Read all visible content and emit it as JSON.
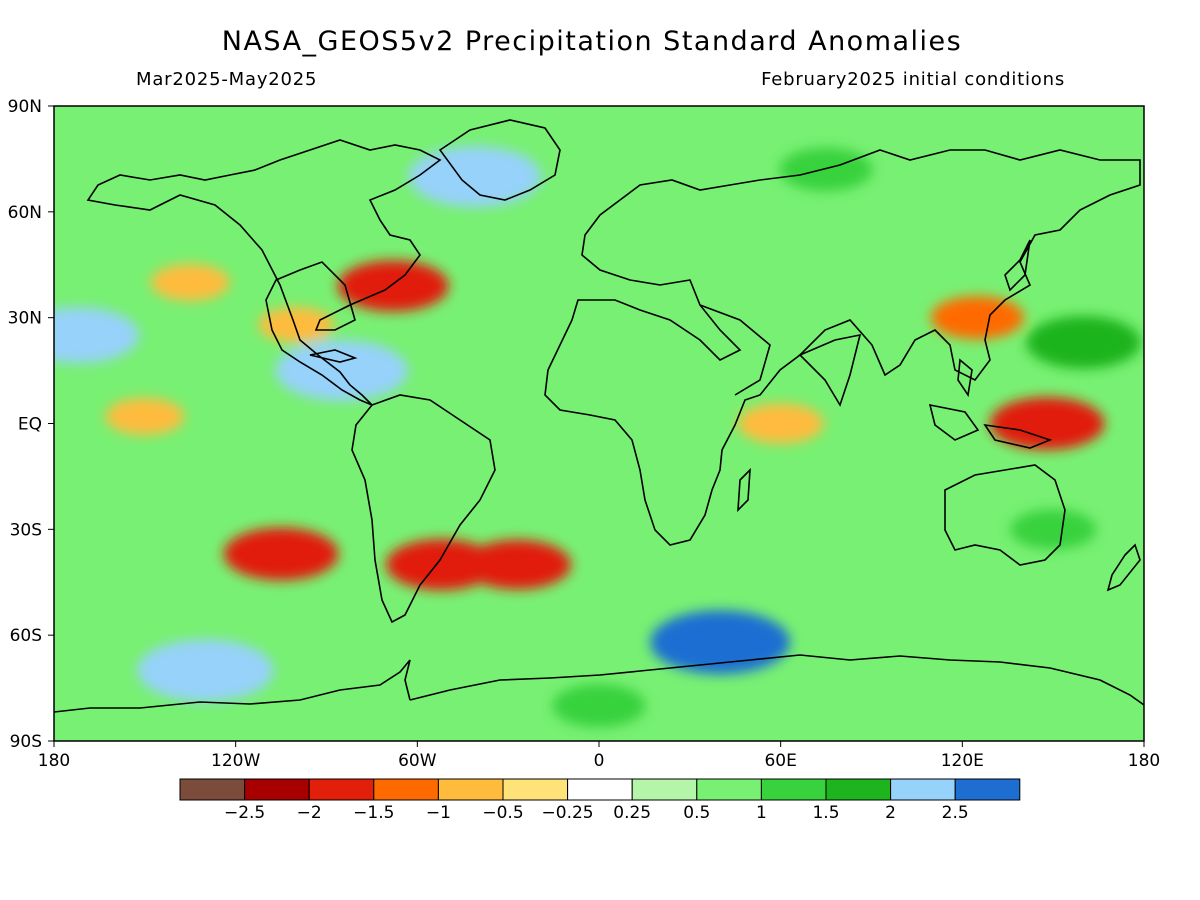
{
  "header": {
    "title": "NASA_GEOS5v2 Precipitation Standard Anomalies",
    "period": "Mar2025-May2025",
    "init": "February2025 initial conditions"
  },
  "axes": {
    "lat_labels": [
      "90N",
      "60N",
      "30N",
      "EQ",
      "30S",
      "60S",
      "90S"
    ],
    "lat_values": [
      90,
      60,
      30,
      0,
      -30,
      -60,
      -90
    ],
    "lon_labels": [
      "180",
      "120W",
      "60W",
      "0",
      "60E",
      "120E",
      "180"
    ],
    "lon_values": [
      -180,
      -120,
      -60,
      0,
      60,
      120,
      180
    ]
  },
  "legend": {
    "labels": [
      "-2.5",
      "-2",
      "-1.5",
      "-1",
      "-0.5",
      "-0.25",
      "0.25",
      "0.5",
      "1",
      "1.5",
      "2",
      "2.5"
    ],
    "colors": [
      "#7b4b3c",
      "#a80000",
      "#e11f0a",
      "#ff6a00",
      "#ffbb3c",
      "#ffe278",
      "#ffffff",
      "#b4f5aa",
      "#78f073",
      "#37d23c",
      "#1eb41e",
      "#96d2fa",
      "#1e6ed2"
    ]
  },
  "chart_data": {
    "type": "heatmap",
    "title": "NASA_GEOS5v2 Precipitation Standard Anomalies",
    "subtitle_left": "Mar2025-May2025",
    "subtitle_right": "February2025 initial conditions",
    "xlim": [
      -180,
      180
    ],
    "ylim": [
      -90,
      90
    ],
    "color_levels": [
      -2.5,
      -2,
      -1.5,
      -1,
      -0.5,
      -0.25,
      0.25,
      0.5,
      1,
      1.5,
      2,
      2.5
    ],
    "anomaly_features": [
      {
        "lon": -135,
        "lat": 40,
        "value": -0.8
      },
      {
        "lon": -100,
        "lat": 28,
        "value": -0.7
      },
      {
        "lon": -150,
        "lat": 2,
        "value": -0.8
      },
      {
        "lon": -105,
        "lat": -37,
        "value": -1.8
      },
      {
        "lon": -27,
        "lat": -40,
        "value": -1.6
      },
      {
        "lon": -52,
        "lat": -40,
        "value": -1.7
      },
      {
        "lon": 148,
        "lat": 0,
        "value": -1.8
      },
      {
        "lon": 125,
        "lat": 30,
        "value": -1.2
      },
      {
        "lon": 60,
        "lat": 0,
        "value": -1.0
      },
      {
        "lon": -68,
        "lat": 39,
        "value": -1.7
      },
      {
        "lon": -85,
        "lat": 15,
        "value": 2.3
      },
      {
        "lon": -41,
        "lat": 70,
        "value": 2.3
      },
      {
        "lon": -172,
        "lat": 25,
        "value": 2.0
      },
      {
        "lon": 40,
        "lat": -62,
        "value": 2.5
      },
      {
        "lon": -130,
        "lat": -70,
        "value": 2.4
      },
      {
        "lon": 160,
        "lat": 23,
        "value": 1.8
      },
      {
        "lon": 75,
        "lat": 72,
        "value": 1.2
      },
      {
        "lon": 150,
        "lat": -30,
        "value": 1.0
      },
      {
        "lon": 0,
        "lat": -80,
        "value": 1.2
      },
      {
        "lon": 20,
        "lat": 10,
        "value": 0.6
      }
    ]
  }
}
